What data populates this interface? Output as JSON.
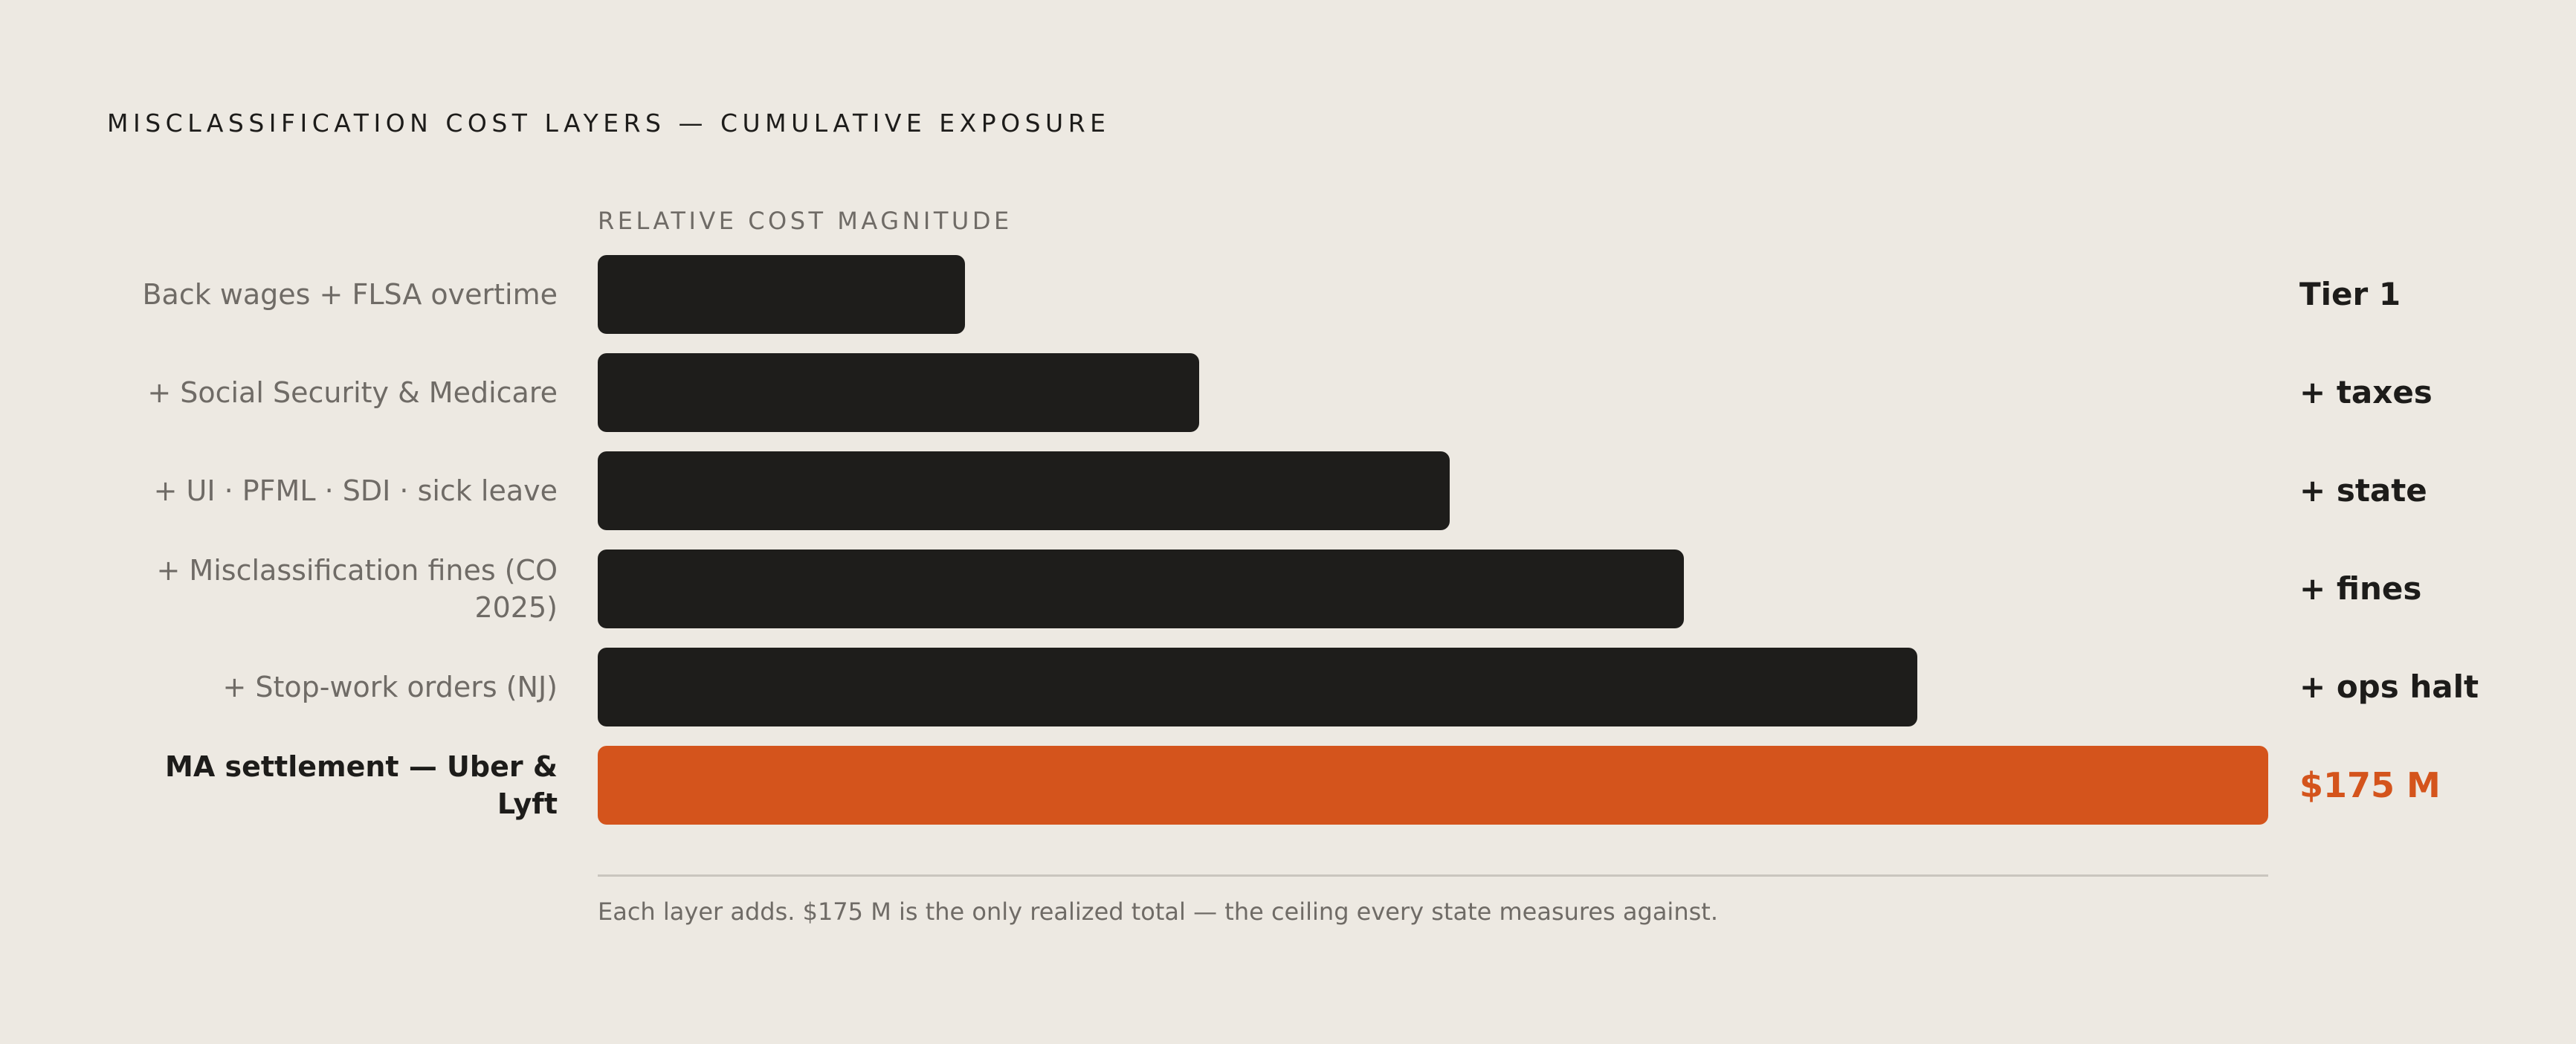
{
  "title": "MISCLASSIFICATION COST LAYERS — CUMULATIVE EXPOSURE",
  "chart_data": {
    "type": "bar",
    "orientation": "horizontal",
    "xlabel": "RELATIVE COST MAGNITUDE",
    "categories": [
      "Back wages + FLSA overtime",
      "+ Social Security & Medicare",
      "+ UI · PFML · SDI · sick leave",
      "+ Misclassification fines (CO 2025)",
      "+ Stop-work orders (NJ)",
      "MA settlement — Uber & Lyft"
    ],
    "values": [
      22,
      36,
      51,
      65,
      79,
      100
    ],
    "value_labels": [
      "Tier 1",
      "+ taxes",
      "+ state",
      "+ fines",
      "+ ops halt",
      "$175 M"
    ],
    "highlight_index": 5,
    "colors": {
      "default": "#1E1D1B",
      "highlight": "#D4541C"
    },
    "footnote": "Each layer adds. $175 M is the only realized total — the ceiling every state measures against."
  }
}
